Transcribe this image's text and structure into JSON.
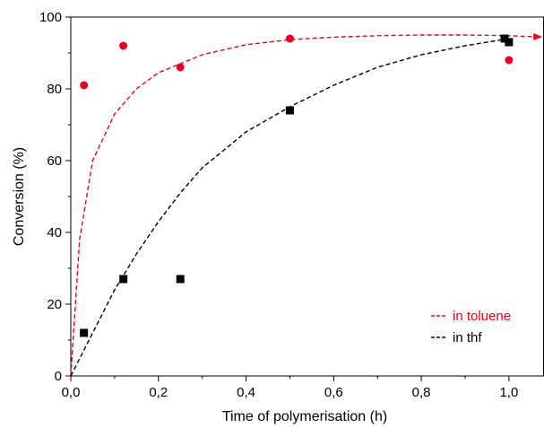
{
  "chart_data": {
    "type": "scatter",
    "title": "",
    "xlabel": "Time of polymerisation (h)",
    "ylabel": "Conversion (%)",
    "xlim": [
      0,
      1.08
    ],
    "ylim": [
      0,
      100
    ],
    "x_ticks": [
      0.0,
      0.2,
      0.4,
      0.6,
      0.8,
      1.0
    ],
    "x_tick_labels": [
      "0,0",
      "0,2",
      "0,4",
      "0,6",
      "0,8",
      "1,0"
    ],
    "y_ticks": [
      0,
      20,
      40,
      60,
      80,
      100
    ],
    "y_tick_labels": [
      "0",
      "20",
      "40",
      "60",
      "80",
      "100"
    ],
    "grid": false,
    "legend_position": "bottom-right",
    "series": [
      {
        "name": "in toluene",
        "marker": "circle",
        "color": "#e8001c",
        "x": [
          0.03,
          0.12,
          0.25,
          0.5,
          1.0
        ],
        "y": [
          81,
          92,
          86,
          94,
          88
        ],
        "fit_curve": {
          "x": [
            0.0,
            0.02,
            0.05,
            0.1,
            0.15,
            0.2,
            0.3,
            0.4,
            0.5,
            0.6,
            0.7,
            0.8,
            0.9,
            1.0,
            1.06
          ],
          "y": [
            0,
            38,
            60,
            73,
            80,
            84.5,
            89.5,
            92.3,
            93.7,
            94.4,
            94.8,
            95.0,
            95.0,
            94.8,
            94.5
          ]
        }
      },
      {
        "name": "in thf",
        "marker": "square",
        "color": "#000000",
        "x": [
          0.03,
          0.12,
          0.25,
          0.5,
          0.99,
          1.0
        ],
        "y": [
          12,
          27,
          27,
          74,
          94,
          93
        ],
        "fit_curve": {
          "x": [
            0.0,
            0.05,
            0.1,
            0.15,
            0.2,
            0.25,
            0.3,
            0.4,
            0.5,
            0.6,
            0.7,
            0.8,
            0.9,
            1.0
          ],
          "y": [
            0,
            12,
            24,
            34,
            43,
            51,
            58,
            68,
            75,
            81,
            86,
            89.5,
            92,
            94
          ]
        }
      }
    ]
  }
}
